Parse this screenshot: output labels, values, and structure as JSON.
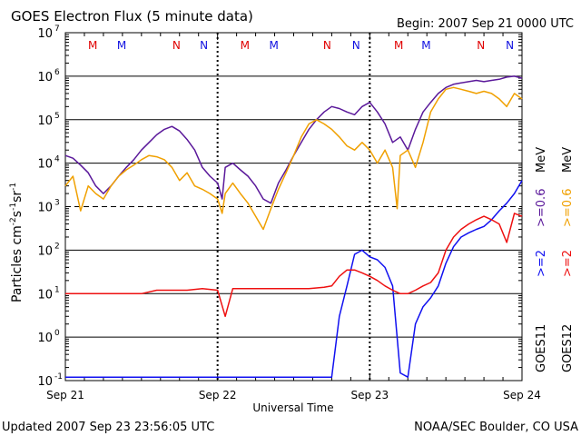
{
  "chart_data": {
    "type": "line",
    "title": "GOES Electron Flux (5 minute data)",
    "begin_label": "Begin: 2007 Sep 21 0000 UTC",
    "xlabel": "Universal Time",
    "ylabel_main": "Particles cm",
    "ylabel_exp1": "-2",
    "ylabel_mid1": "s",
    "ylabel_exp2": "-1",
    "ylabel_mid2": "sr",
    "ylabel_exp3": "-1",
    "x_ticks": [
      "Sep 21",
      "Sep 22",
      "Sep 23",
      "Sep 24"
    ],
    "x_range_days": [
      0,
      3
    ],
    "y_scale": "log",
    "y_range": [
      0.1,
      10000000
    ],
    "y_tick_base": "10",
    "y_tick_exponents": [
      "7",
      "6",
      "5",
      "4",
      "3",
      "2",
      "1",
      "0",
      "-1"
    ],
    "threshold_level": 1000,
    "markers_label": "M M N N",
    "markers": [
      {
        "day": 0.18,
        "label": "M",
        "color": "#e00000"
      },
      {
        "day": 0.37,
        "label": "M",
        "color": "#1010e0"
      },
      {
        "day": 0.73,
        "label": "N",
        "color": "#e00000"
      },
      {
        "day": 0.91,
        "label": "N",
        "color": "#1010e0"
      },
      {
        "day": 1.18,
        "label": "M",
        "color": "#e00000"
      },
      {
        "day": 1.37,
        "label": "M",
        "color": "#1010e0"
      },
      {
        "day": 1.72,
        "label": "N",
        "color": "#e00000"
      },
      {
        "day": 1.91,
        "label": "N",
        "color": "#1010e0"
      },
      {
        "day": 2.19,
        "label": "M",
        "color": "#e00000"
      },
      {
        "day": 2.37,
        "label": "M",
        "color": "#1010e0"
      },
      {
        "day": 2.73,
        "label": "N",
        "color": "#e00000"
      },
      {
        "day": 2.92,
        "label": "N",
        "color": "#1010e0"
      }
    ],
    "legend": {
      "goes11": "GOES11",
      "goes12": "GOES12",
      "g11_low": ">=0.6",
      "g11_high": ">=2",
      "g12_low": ">=0.6",
      "g12_high": ">=2",
      "unit": "MeV"
    },
    "series": [
      {
        "name": "GOES11 >=0.6 MeV",
        "color": "#5a189a",
        "x": [
          0.0,
          0.05,
          0.1,
          0.15,
          0.2,
          0.25,
          0.3,
          0.35,
          0.4,
          0.45,
          0.5,
          0.55,
          0.6,
          0.65,
          0.7,
          0.75,
          0.8,
          0.85,
          0.9,
          0.95,
          1.0,
          1.03,
          1.05,
          1.1,
          1.15,
          1.2,
          1.25,
          1.3,
          1.35,
          1.4,
          1.45,
          1.5,
          1.55,
          1.6,
          1.65,
          1.7,
          1.75,
          1.8,
          1.85,
          1.9,
          1.95,
          2.0,
          2.05,
          2.1,
          2.15,
          2.2,
          2.25,
          2.3,
          2.35,
          2.4,
          2.45,
          2.5,
          2.55,
          2.6,
          2.65,
          2.7,
          2.75,
          2.8,
          2.85,
          2.9,
          2.95,
          3.0
        ],
        "y": [
          15000,
          13000,
          9000,
          6000,
          3000,
          2000,
          3000,
          5000,
          8000,
          12000,
          20000,
          30000,
          45000,
          60000,
          70000,
          55000,
          35000,
          20000,
          8000,
          5000,
          3500,
          1500,
          8000,
          10000,
          7000,
          5000,
          3000,
          1500,
          1200,
          3500,
          7000,
          15000,
          30000,
          60000,
          100000,
          150000,
          200000,
          180000,
          150000,
          130000,
          200000,
          250000,
          150000,
          80000,
          30000,
          40000,
          20000,
          60000,
          150000,
          250000,
          400000,
          550000,
          650000,
          700000,
          750000,
          800000,
          750000,
          800000,
          850000,
          950000,
          1000000,
          900000
        ]
      },
      {
        "name": "GOES12 >=0.6 MeV",
        "color": "#f0a000",
        "x": [
          0.0,
          0.05,
          0.1,
          0.15,
          0.2,
          0.25,
          0.3,
          0.35,
          0.4,
          0.45,
          0.5,
          0.55,
          0.6,
          0.65,
          0.7,
          0.75,
          0.8,
          0.85,
          0.9,
          0.95,
          1.0,
          1.03,
          1.05,
          1.1,
          1.15,
          1.2,
          1.25,
          1.3,
          1.35,
          1.4,
          1.45,
          1.5,
          1.55,
          1.6,
          1.65,
          1.7,
          1.75,
          1.8,
          1.85,
          1.9,
          1.95,
          2.0,
          2.05,
          2.1,
          2.15,
          2.18,
          2.2,
          2.25,
          2.3,
          2.35,
          2.4,
          2.45,
          2.5,
          2.55,
          2.6,
          2.65,
          2.7,
          2.75,
          2.8,
          2.85,
          2.9,
          2.95,
          3.0
        ],
        "y": [
          3000,
          5000,
          800,
          3000,
          2000,
          1500,
          3000,
          5000,
          7000,
          9000,
          12000,
          15000,
          14000,
          12000,
          8000,
          4000,
          6000,
          3000,
          2500,
          2000,
          1500,
          700,
          2000,
          3500,
          2000,
          1200,
          600,
          300,
          900,
          2500,
          6000,
          15000,
          40000,
          80000,
          100000,
          80000,
          60000,
          40000,
          25000,
          20000,
          30000,
          20000,
          10000,
          20000,
          8000,
          900,
          15000,
          20000,
          8000,
          30000,
          150000,
          300000,
          500000,
          550000,
          500000,
          450000,
          400000,
          450000,
          400000,
          300000,
          200000,
          400000,
          300000
        ]
      },
      {
        "name": "GOES11 >=2 MeV",
        "color": "#1010f0",
        "x": [
          0.0,
          0.1,
          0.2,
          0.3,
          0.4,
          0.5,
          0.6,
          0.7,
          0.8,
          0.9,
          1.0,
          1.05,
          1.1,
          1.2,
          1.3,
          1.4,
          1.5,
          1.6,
          1.7,
          1.75,
          1.8,
          1.85,
          1.9,
          1.95,
          2.0,
          2.05,
          2.1,
          2.15,
          2.2,
          2.25,
          2.3,
          2.35,
          2.4,
          2.45,
          2.5,
          2.55,
          2.6,
          2.65,
          2.7,
          2.75,
          2.8,
          2.85,
          2.9,
          2.95,
          3.0
        ],
        "y": [
          0.12,
          0.12,
          0.12,
          0.12,
          0.12,
          0.12,
          0.12,
          0.12,
          0.12,
          0.12,
          0.12,
          0.12,
          0.12,
          0.12,
          0.12,
          0.12,
          0.12,
          0.12,
          0.12,
          0.12,
          3,
          15,
          80,
          100,
          70,
          60,
          40,
          15,
          0.15,
          0.12,
          2,
          5,
          8,
          15,
          50,
          120,
          200,
          250,
          300,
          350,
          500,
          800,
          1200,
          2000,
          4000
        ]
      },
      {
        "name": "GOES12 >=2 MeV",
        "color": "#ee1010",
        "x": [
          0.0,
          0.1,
          0.2,
          0.3,
          0.4,
          0.5,
          0.6,
          0.7,
          0.8,
          0.9,
          1.0,
          1.05,
          1.1,
          1.2,
          1.3,
          1.4,
          1.5,
          1.6,
          1.7,
          1.75,
          1.8,
          1.85,
          1.9,
          1.95,
          2.0,
          2.05,
          2.1,
          2.15,
          2.2,
          2.25,
          2.3,
          2.35,
          2.4,
          2.45,
          2.5,
          2.55,
          2.6,
          2.65,
          2.7,
          2.75,
          2.8,
          2.85,
          2.9,
          2.95,
          3.0
        ],
        "y": [
          10,
          10,
          10,
          10,
          10,
          10,
          12,
          12,
          12,
          13,
          12,
          3,
          13,
          13,
          13,
          13,
          13,
          13,
          14,
          15,
          25,
          35,
          35,
          30,
          25,
          20,
          15,
          12,
          10,
          10,
          12,
          15,
          18,
          30,
          100,
          200,
          300,
          400,
          500,
          600,
          500,
          400,
          150,
          700,
          600
        ]
      }
    ]
  },
  "footer": {
    "updated": "Updated 2007 Sep 23 23:56:05 UTC",
    "source": "NOAA/SEC Boulder, CO USA"
  }
}
